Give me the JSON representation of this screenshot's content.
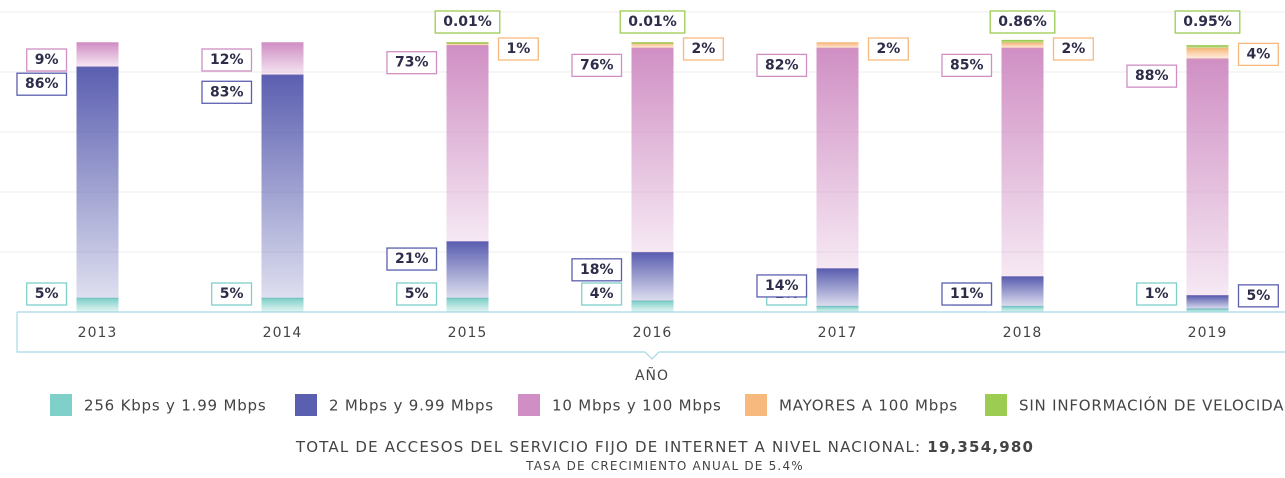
{
  "chart_data": {
    "type": "stacked_bar",
    "x_label": "AÑO",
    "categories": [
      "2013",
      "2014",
      "2015",
      "2016",
      "2017",
      "2018",
      "2019"
    ],
    "ylim": [
      0,
      100
    ],
    "series": [
      {
        "name": "256 Kbps y 1.99 Mbps",
        "color": "#7fd0c8",
        "values": [
          5,
          5,
          5,
          4,
          2,
          2,
          1
        ],
        "value_labels": [
          "5%",
          "5%",
          "5%",
          "4%",
          "2%",
          "2%",
          "1%"
        ]
      },
      {
        "name": "2 Mbps y 9.99 Mbps",
        "color": "#5b5fb0",
        "values": [
          86,
          83,
          21,
          18,
          14,
          11,
          5
        ],
        "value_labels": [
          "86%",
          "83%",
          "21%",
          "18%",
          "14%",
          "11%",
          "5%"
        ]
      },
      {
        "name": "10 Mbps y 100 Mbps",
        "color": "#d08fc4",
        "values": [
          9,
          12,
          73,
          76,
          82,
          85,
          88
        ],
        "value_labels": [
          "9%",
          "12%",
          "73%",
          "76%",
          "82%",
          "85%",
          "88%"
        ]
      },
      {
        "name": "MAYORES A 100 Mbps",
        "color": "#f8b97f",
        "values": [
          null,
          null,
          1,
          2,
          2,
          2,
          4
        ],
        "value_labels": [
          null,
          null,
          "1%",
          "2%",
          "2%",
          "2%",
          "4%"
        ]
      },
      {
        "name": "SIN INFORMACIÓN DE VELOCIDAD",
        "color": "#9ccc52",
        "values": [
          null,
          null,
          0.01,
          0.01,
          null,
          0.86,
          0.95
        ],
        "value_labels": [
          null,
          null,
          "0.01%",
          "0.01%",
          null,
          "0.86%",
          "0.95%"
        ]
      }
    ],
    "footer_label": "TOTAL DE ACCESOS DEL SERVICIO FIJO DE INTERNET A NIVEL NACIONAL:",
    "footer_value": "19,354,980",
    "subtitle": "TASA DE CRECIMIENTO ANUAL DE 5.4%"
  }
}
